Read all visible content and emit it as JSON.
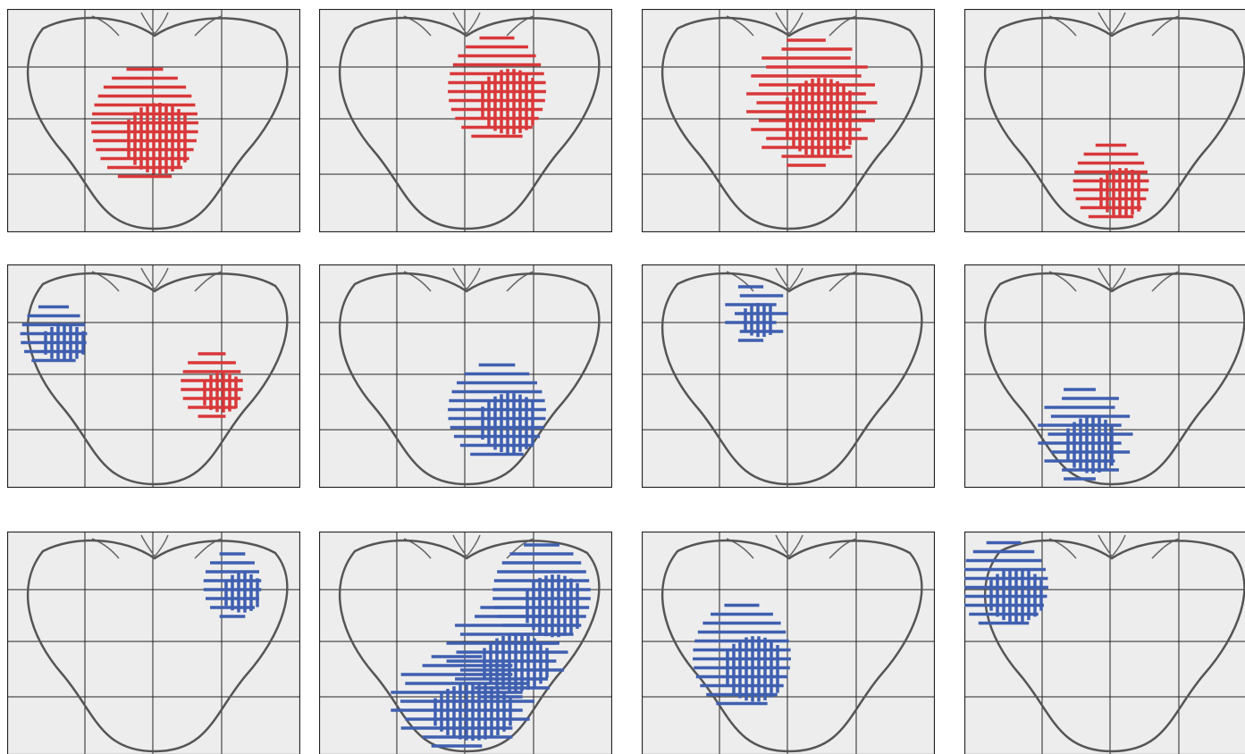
{
  "panels": [
    {
      "hatch_colors": [
        "#d9383a"
      ]
    },
    {
      "hatch_colors": [
        "#d9383a"
      ]
    },
    {
      "hatch_colors": [
        "#d9383a"
      ]
    },
    {
      "hatch_colors": [
        "#d9383a"
      ]
    },
    {
      "hatch_colors": [
        "#3f5fb0",
        "#d9383a"
      ]
    },
    {
      "hatch_colors": [
        "#3f5fb0"
      ]
    },
    {
      "hatch_colors": [
        "#3f5fb0"
      ]
    },
    {
      "hatch_colors": [
        "#3f5fb0"
      ]
    },
    {
      "hatch_colors": [
        "#3f5fb0"
      ]
    },
    {
      "hatch_colors": [
        "#3f5fb0",
        "#3f5fb0",
        "#3f5fb0"
      ]
    },
    {
      "hatch_colors": [
        "#3f5fb0"
      ]
    },
    {
      "hatch_colors": [
        "#3f5fb0"
      ]
    }
  ]
}
